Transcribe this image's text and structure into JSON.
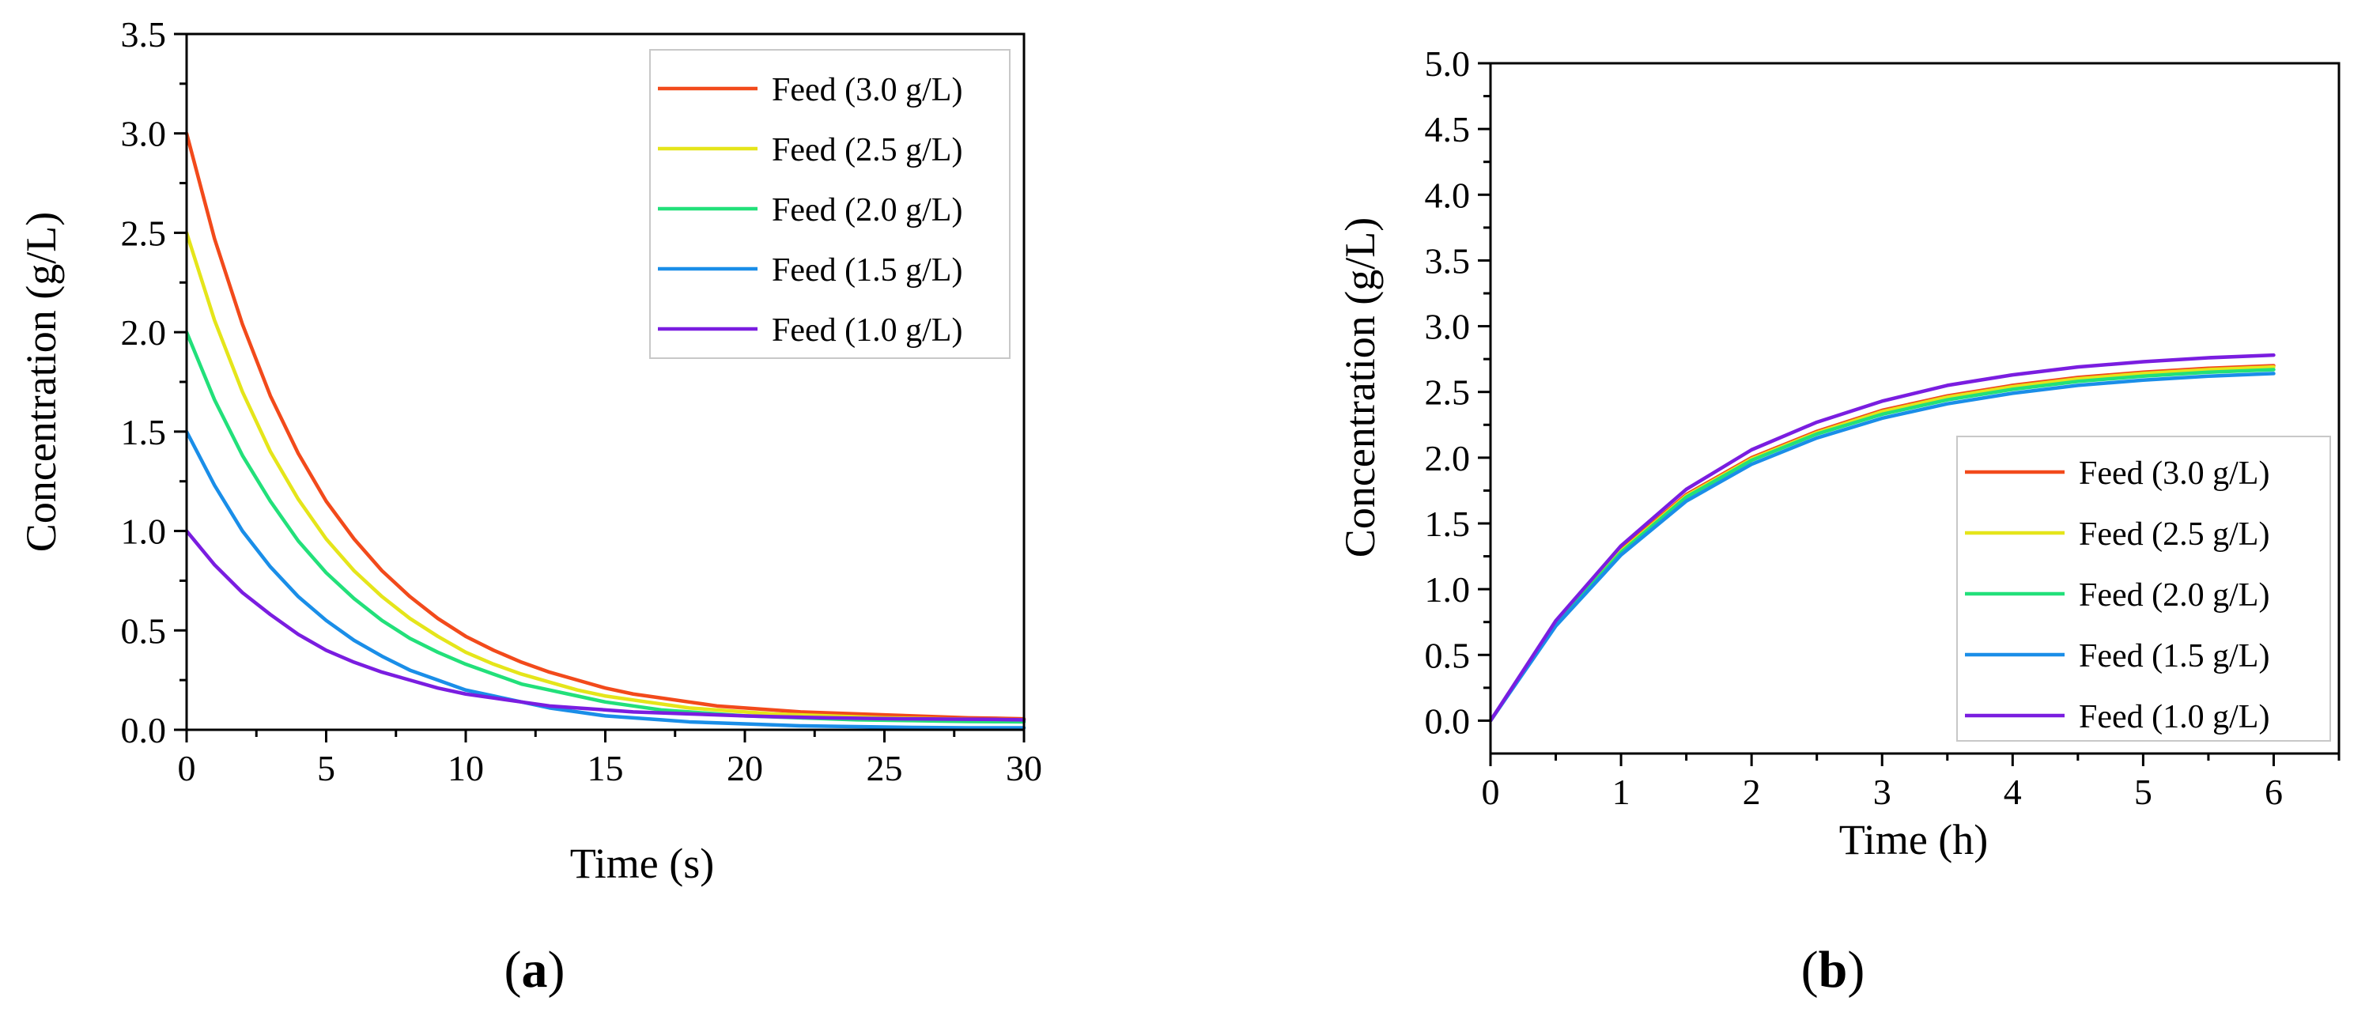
{
  "chart_data": [
    {
      "type": "line",
      "panel_label": "a",
      "title": "",
      "xlabel": "Time (s)",
      "ylabel": "Concentration (g/L)",
      "xlim": [
        0,
        30
      ],
      "ylim": [
        0,
        3.5
      ],
      "x_ticks": [
        "0",
        "5",
        "10",
        "15",
        "20",
        "25",
        "30"
      ],
      "y_ticks": [
        "0.0",
        "0.5",
        "1.0",
        "1.5",
        "2.0",
        "2.5",
        "3.0",
        "3.5"
      ],
      "grid": false,
      "legend_position": "top-right",
      "x": [
        0,
        1,
        2,
        3,
        4,
        5,
        6,
        7,
        8,
        9,
        10,
        11,
        12,
        13,
        14,
        15,
        16,
        17,
        18,
        19,
        20,
        21,
        22,
        23,
        24,
        25,
        26,
        27,
        28,
        29,
        30
      ],
      "series": [
        {
          "name": "Feed (3.0 g/L)",
          "color": "#f24a1b",
          "values": [
            3.0,
            2.47,
            2.04,
            1.68,
            1.39,
            1.15,
            0.96,
            0.8,
            0.67,
            0.56,
            0.47,
            0.4,
            0.34,
            0.29,
            0.25,
            0.21,
            0.18,
            0.16,
            0.14,
            0.12,
            0.11,
            0.1,
            0.09,
            0.085,
            0.08,
            0.075,
            0.07,
            0.065,
            0.06,
            0.058,
            0.055
          ]
        },
        {
          "name": "Feed (2.5 g/L)",
          "color": "#e5e51a",
          "values": [
            2.5,
            2.06,
            1.7,
            1.4,
            1.16,
            0.96,
            0.8,
            0.67,
            0.56,
            0.47,
            0.39,
            0.33,
            0.28,
            0.24,
            0.2,
            0.17,
            0.15,
            0.13,
            0.11,
            0.1,
            0.09,
            0.08,
            0.075,
            0.07,
            0.065,
            0.06,
            0.058,
            0.055,
            0.053,
            0.052,
            0.05
          ]
        },
        {
          "name": "Feed (2.0 g/L)",
          "color": "#22e07a",
          "values": [
            2.0,
            1.66,
            1.38,
            1.15,
            0.95,
            0.79,
            0.66,
            0.55,
            0.46,
            0.39,
            0.33,
            0.28,
            0.23,
            0.2,
            0.17,
            0.14,
            0.12,
            0.1,
            0.09,
            0.08,
            0.07,
            0.065,
            0.06,
            0.055,
            0.05,
            0.048,
            0.046,
            0.044,
            0.042,
            0.041,
            0.04
          ]
        },
        {
          "name": "Feed (1.5 g/L)",
          "color": "#1a8ee8",
          "values": [
            1.5,
            1.23,
            1.0,
            0.82,
            0.67,
            0.55,
            0.45,
            0.37,
            0.3,
            0.25,
            0.2,
            0.17,
            0.14,
            0.11,
            0.09,
            0.07,
            0.06,
            0.05,
            0.04,
            0.035,
            0.03,
            0.025,
            0.02,
            0.018,
            0.016,
            0.014,
            0.012,
            0.011,
            0.01,
            0.01,
            0.01
          ]
        },
        {
          "name": "Feed (1.0 g/L)",
          "color": "#7a1de0",
          "values": [
            1.0,
            0.83,
            0.69,
            0.58,
            0.48,
            0.4,
            0.34,
            0.29,
            0.25,
            0.21,
            0.18,
            0.16,
            0.14,
            0.12,
            0.11,
            0.1,
            0.09,
            0.085,
            0.08,
            0.075,
            0.07,
            0.066,
            0.063,
            0.06,
            0.058,
            0.056,
            0.055,
            0.054,
            0.053,
            0.052,
            0.05
          ]
        }
      ]
    },
    {
      "type": "line",
      "panel_label": "b",
      "title": "",
      "xlabel": "Time (h)",
      "ylabel": "Concentration (g/L)",
      "xlim": [
        0,
        6.5
      ],
      "ylim": [
        -0.25,
        5.0
      ],
      "x_ticks": [
        "0",
        "1",
        "2",
        "3",
        "4",
        "5",
        "6"
      ],
      "y_ticks": [
        "0.0",
        "0.5",
        "1.0",
        "1.5",
        "2.0",
        "2.5",
        "3.0",
        "3.5",
        "4.0",
        "4.5",
        "5.0"
      ],
      "grid": false,
      "legend_position": "bottom-right",
      "x": [
        0,
        0.5,
        1.0,
        1.5,
        2.0,
        2.5,
        3.0,
        3.5,
        4.0,
        4.5,
        5.0,
        5.5,
        6.0
      ],
      "series": [
        {
          "name": "Feed (3.0 g/L)",
          "color": "#f24a1b",
          "values": [
            0.0,
            0.74,
            1.3,
            1.72,
            2.0,
            2.2,
            2.36,
            2.47,
            2.55,
            2.61,
            2.65,
            2.68,
            2.7
          ]
        },
        {
          "name": "Feed (2.5 g/L)",
          "color": "#e5e51a",
          "values": [
            0.0,
            0.74,
            1.29,
            1.71,
            1.99,
            2.19,
            2.35,
            2.46,
            2.54,
            2.6,
            2.64,
            2.67,
            2.69
          ]
        },
        {
          "name": "Feed (2.0 g/L)",
          "color": "#22e07a",
          "values": [
            0.0,
            0.73,
            1.28,
            1.7,
            1.98,
            2.18,
            2.33,
            2.44,
            2.52,
            2.58,
            2.62,
            2.65,
            2.67
          ]
        },
        {
          "name": "Feed (1.5 g/L)",
          "color": "#1a8ee8",
          "values": [
            0.0,
            0.72,
            1.26,
            1.67,
            1.95,
            2.15,
            2.3,
            2.41,
            2.49,
            2.55,
            2.59,
            2.62,
            2.64
          ]
        },
        {
          "name": "Feed (1.0 g/L)",
          "color": "#7a1de0",
          "values": [
            0.0,
            0.76,
            1.33,
            1.76,
            2.06,
            2.27,
            2.43,
            2.55,
            2.63,
            2.69,
            2.73,
            2.76,
            2.78
          ]
        }
      ]
    }
  ]
}
